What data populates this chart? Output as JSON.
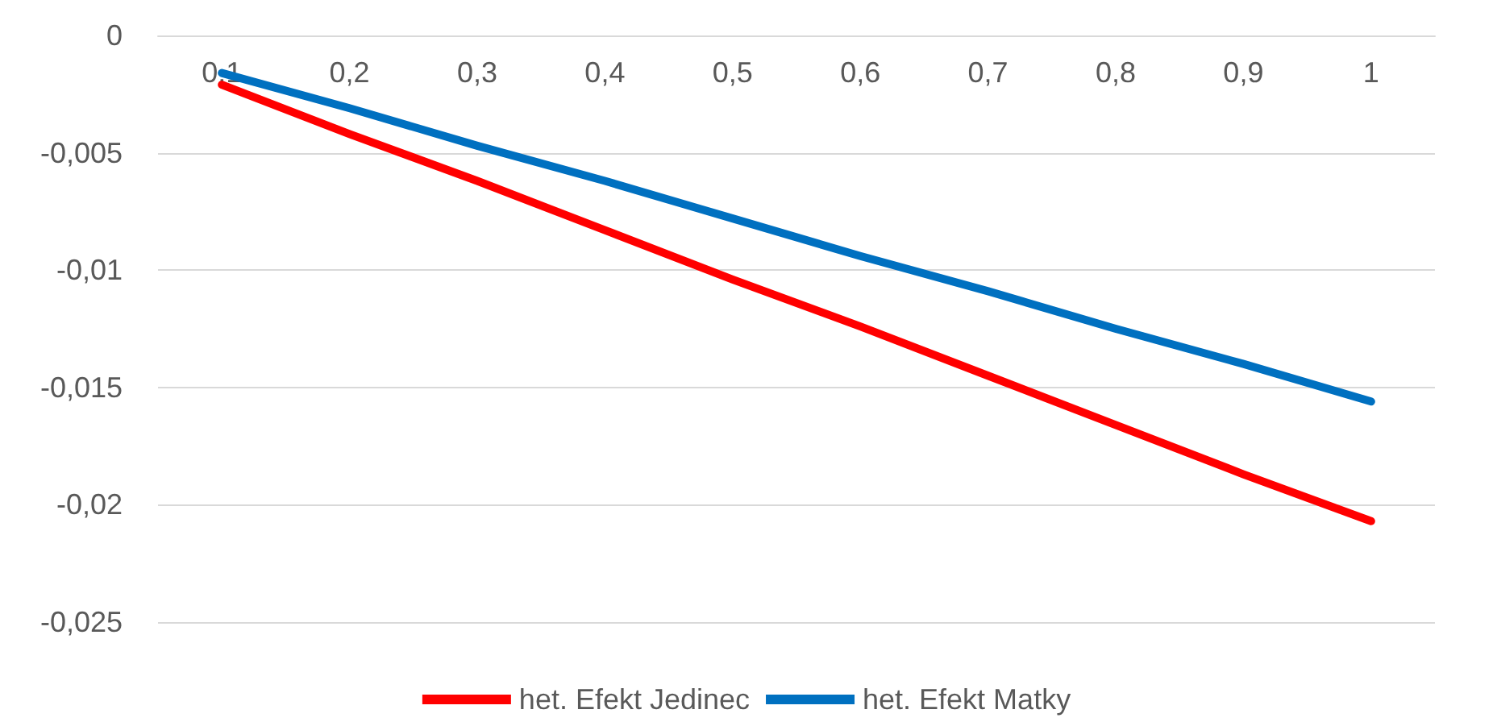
{
  "chart_data": {
    "type": "line",
    "categories": [
      "0,1",
      "0,2",
      "0,3",
      "0,4",
      "0,5",
      "0,6",
      "0,7",
      "0,8",
      "0,9",
      "1"
    ],
    "series": [
      {
        "name": "het. Efekt Jedinec",
        "color": "#ff0000",
        "values": [
          -0.0021,
          -0.0042,
          -0.0062,
          -0.0083,
          -0.0104,
          -0.0124,
          -0.0145,
          -0.0166,
          -0.0187,
          -0.0207
        ]
      },
      {
        "name": "het. Efekt Matky",
        "color": "#0070c0",
        "values": [
          -0.0016,
          -0.0031,
          -0.0047,
          -0.0062,
          -0.0078,
          -0.0094,
          -0.0109,
          -0.0125,
          -0.014,
          -0.0156
        ]
      }
    ],
    "ylim": [
      -0.025,
      0
    ],
    "yticks": [
      {
        "value": -0.025,
        "label": "-0,025"
      },
      {
        "value": -0.02,
        "label": "-0,02"
      },
      {
        "value": -0.015,
        "label": "-0,015"
      },
      {
        "value": -0.01,
        "label": "-0,01"
      },
      {
        "value": -0.005,
        "label": "-0,005"
      },
      0
    ],
    "grid": "y",
    "legend": "bottom",
    "marker": "none",
    "line_style": "solid"
  }
}
